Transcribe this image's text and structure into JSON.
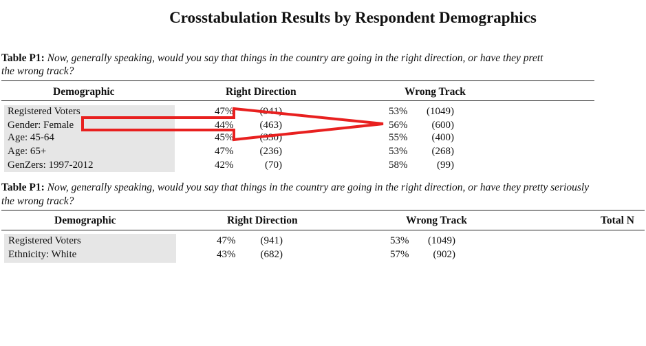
{
  "page_title": "Crosstabulation Results by Respondent Demographics",
  "tables": [
    {
      "label": "Table P1:",
      "question_line1": "Now, generally speaking, would you say that things in the country are going in the right direction, or have they prett",
      "question_line2": "the wrong track?",
      "headers": {
        "demographic": "Demographic",
        "right": "Right Direction",
        "wrong": "Wrong Track",
        "total": ""
      },
      "rows": [
        {
          "label": "Registered Voters",
          "right_pct": "47%",
          "right_n": "(941)",
          "wrong_pct": "53%",
          "wrong_n": "(1049)"
        },
        {
          "label": "Gender: Female",
          "right_pct": "44%",
          "right_n": "(463)",
          "wrong_pct": "56%",
          "wrong_n": "(600)"
        },
        {
          "label": "Age: 45-64",
          "right_pct": "45%",
          "right_n": "(330)",
          "wrong_pct": "55%",
          "wrong_n": "(400)"
        },
        {
          "label": "Age: 65+",
          "right_pct": "47%",
          "right_n": "(236)",
          "wrong_pct": "53%",
          "wrong_n": "(268)"
        },
        {
          "label": "GenZers: 1997-2012",
          "right_pct": "42%",
          "right_n": "(70)",
          "wrong_pct": "58%",
          "wrong_n": "(99)"
        }
      ]
    },
    {
      "label": "Table P1:",
      "question_line1": "Now, generally speaking, would you say that things in the country are going in the right direction, or have they pretty seriously",
      "question_line2": "the wrong track?",
      "headers": {
        "demographic": "Demographic",
        "right": "Right Direction",
        "wrong": "Wrong Track",
        "total": "Total N"
      },
      "rows": [
        {
          "label": "Registered Voters",
          "right_pct": "47%",
          "right_n": "(941)",
          "wrong_pct": "53%",
          "wrong_n": "(1049)"
        },
        {
          "label": "Ethnicity: White",
          "right_pct": "43%",
          "right_n": "(682)",
          "wrong_pct": "57%",
          "wrong_n": "(902)"
        }
      ]
    }
  ],
  "annotation": {
    "type": "arrow",
    "color": "#e8201f",
    "from": "Gender: Female",
    "to": "56%"
  }
}
